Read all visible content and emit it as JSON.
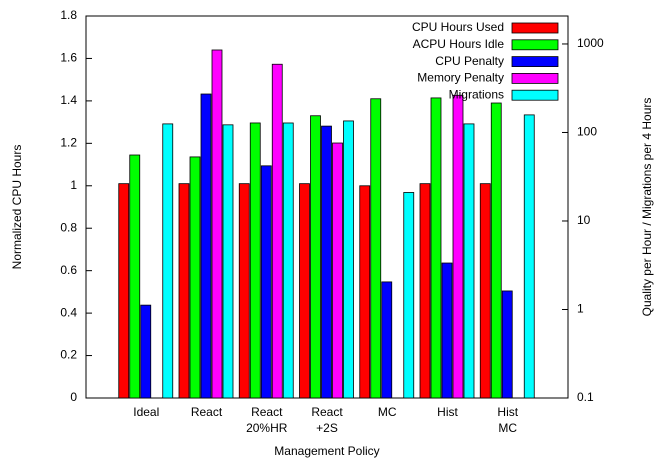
{
  "chart_data": {
    "type": "bar",
    "xlabel": "Management Policy",
    "ylabel": "Normalized CPU Hours",
    "y2label": "Quality per Hour / Migrations per 4 Hours",
    "categories": [
      [
        "Ideal"
      ],
      [
        "React"
      ],
      [
        "React",
        "20%HR"
      ],
      [
        "React",
        "+2S"
      ],
      [
        "MC"
      ],
      [
        "Hist"
      ],
      [
        "Hist",
        "MC"
      ]
    ],
    "ylim": [
      0,
      1.8
    ],
    "yticks": [
      0,
      0.2,
      0.4,
      0.6,
      0.8,
      1,
      1.2,
      1.4,
      1.6,
      1.8
    ],
    "y2lim": [
      0.1,
      2070
    ],
    "y2ticks": [
      0.1,
      1,
      10,
      100,
      1000
    ],
    "y2log": true,
    "legend": "upper right",
    "series": [
      {
        "name": "CPU Hours Used",
        "color": "#ff0000",
        "values": [
          1.01,
          1.01,
          1.01,
          1.01,
          1.0,
          1.01,
          1.01
        ]
      },
      {
        "name": "ACPU Hours Idle",
        "color": "#00ff00",
        "values": [
          1.145,
          1.136,
          1.296,
          1.33,
          1.41,
          1.414,
          1.39
        ]
      },
      {
        "name": "CPU Penalty",
        "color": "#0000ff",
        "axis": "y2",
        "values": [
          1.12,
          272,
          42,
          118,
          2.05,
          3.35,
          1.62
        ]
      },
      {
        "name": "Memory Penalty",
        "color": "#ff00ff",
        "axis": "y2",
        "values": [
          null,
          855,
          590,
          76,
          null,
          263,
          null
        ]
      },
      {
        "name": "Migrations",
        "color": "#00ffff",
        "axis": "y2",
        "values": [
          125,
          122,
          128,
          135,
          21,
          125,
          158
        ]
      }
    ]
  }
}
